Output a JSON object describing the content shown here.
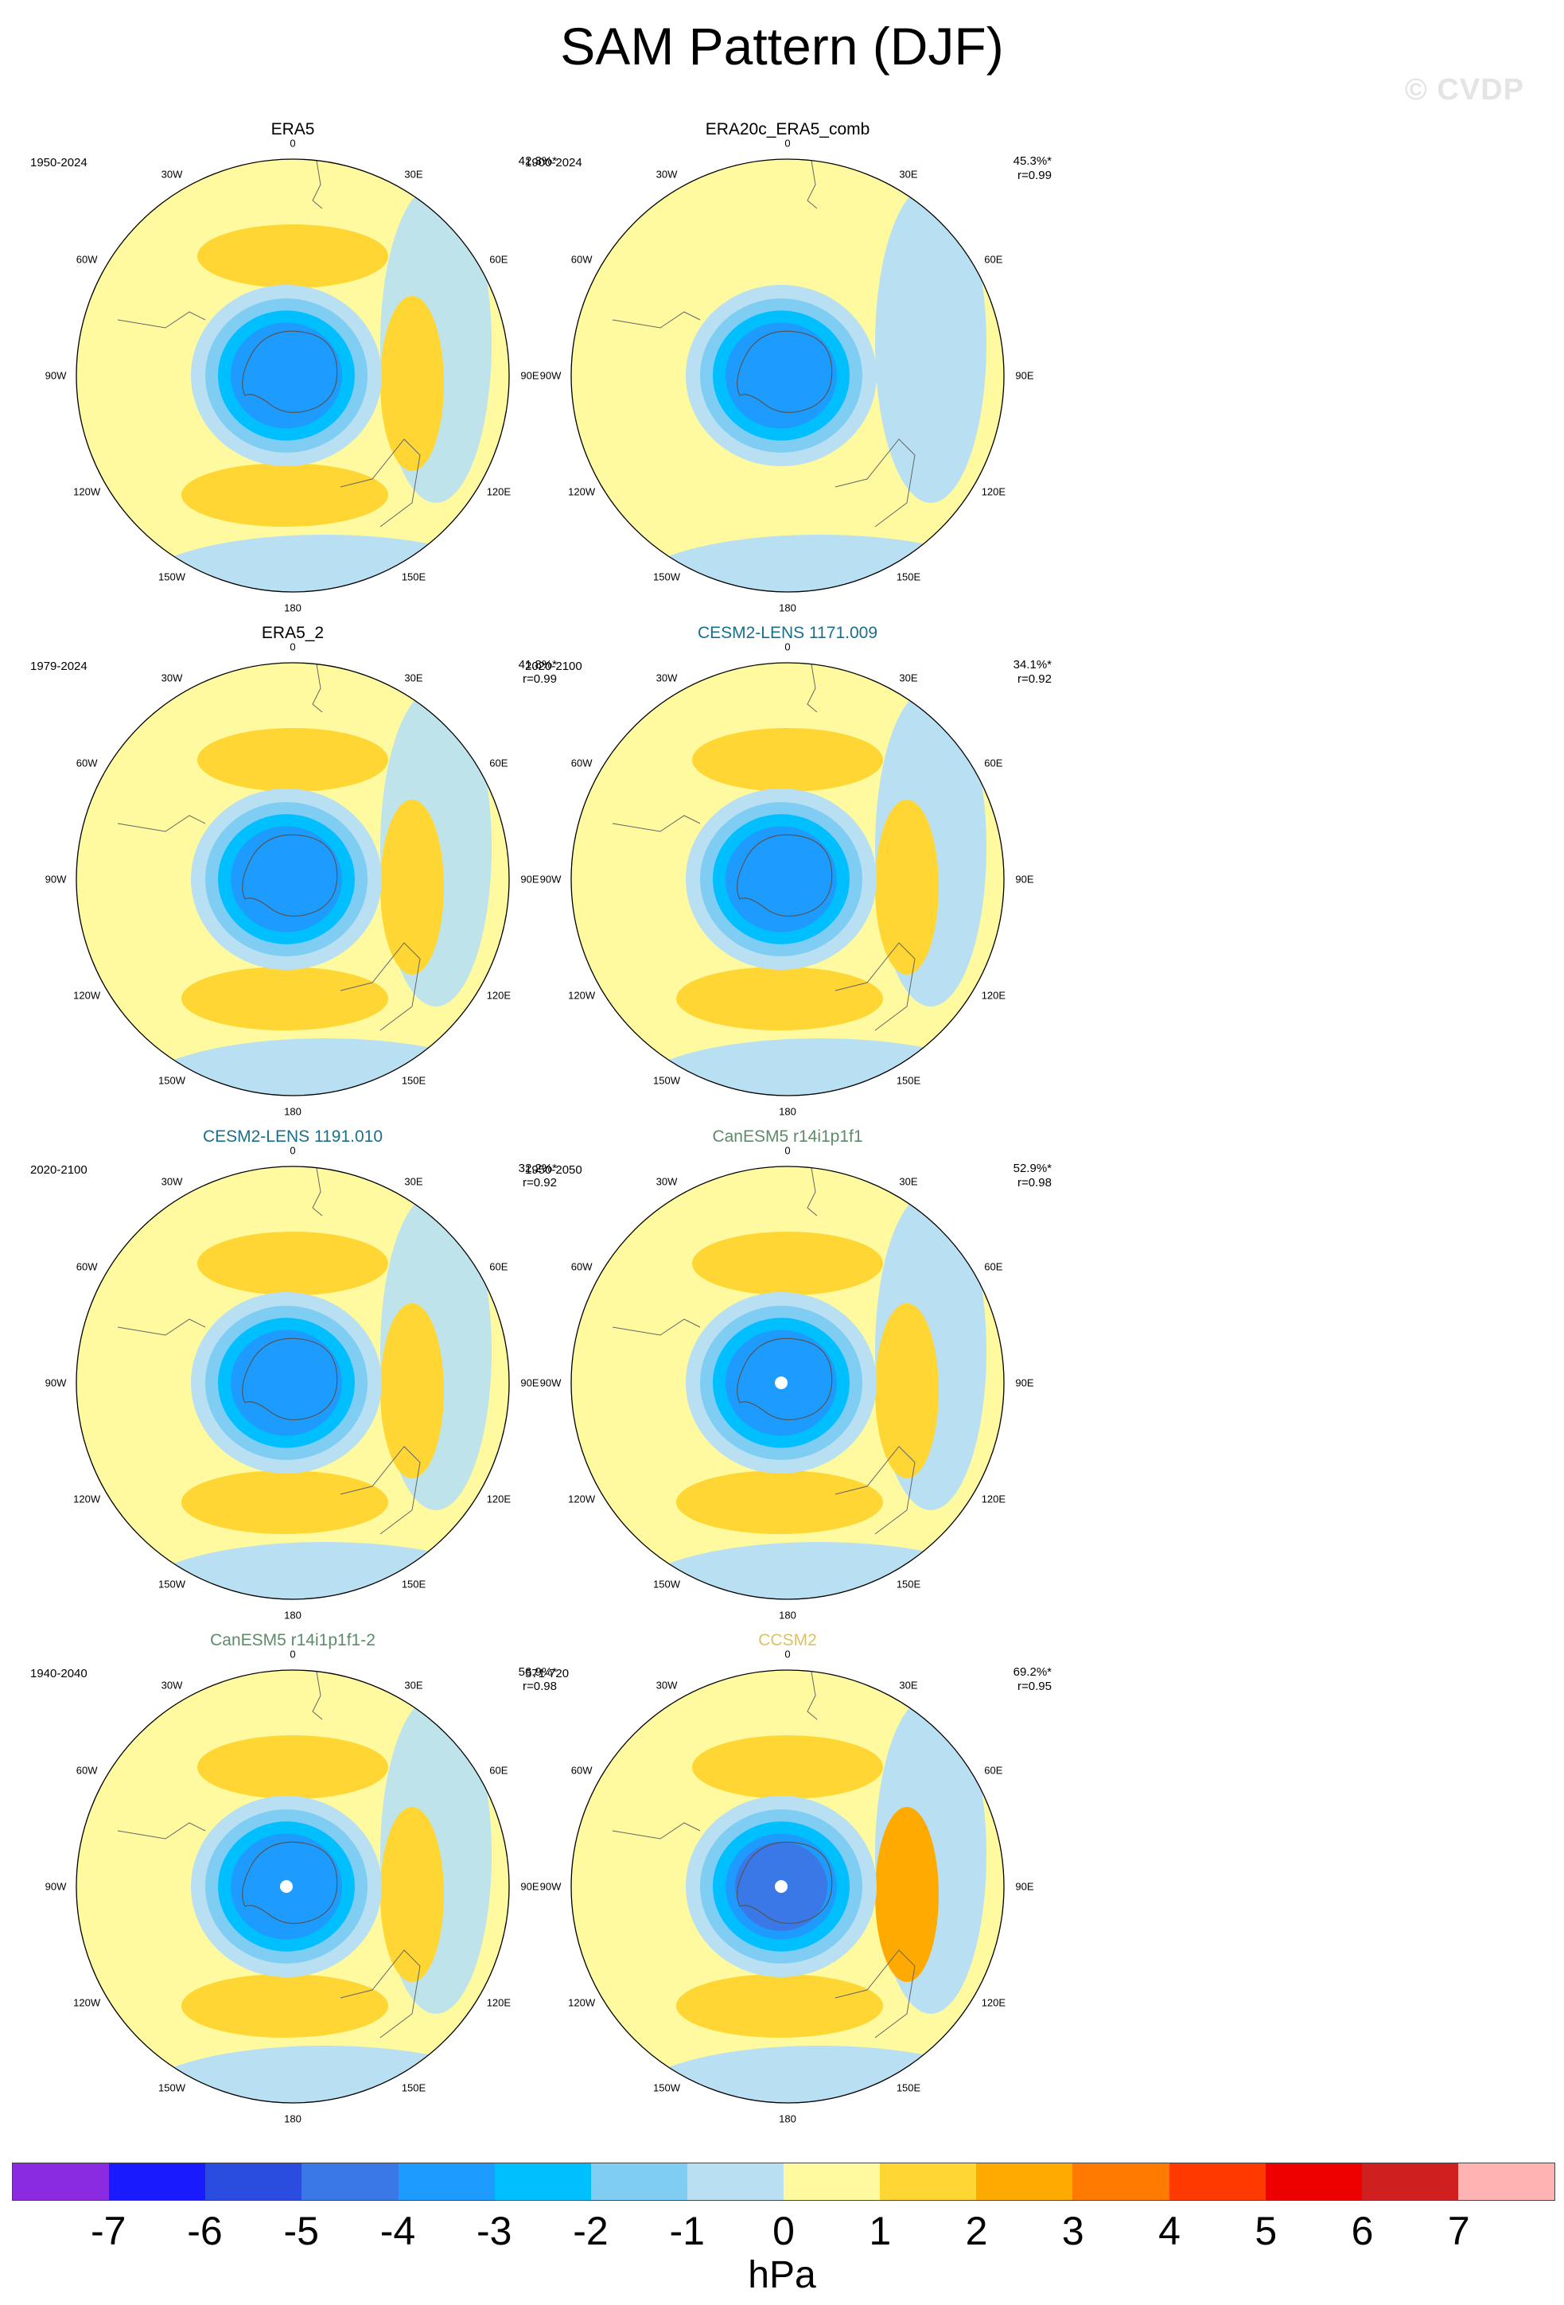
{
  "title": "SAM Pattern (DJF)",
  "watermark": "© CVDP",
  "longitude_labels": [
    "0",
    "30E",
    "60E",
    "90E",
    "120E",
    "150E",
    "180",
    "150W",
    "120W",
    "90W",
    "60W",
    "30W"
  ],
  "panels": [
    {
      "title": "ERA5",
      "title_color": "#000000",
      "period": "1950-2024",
      "pct": "42.3%*",
      "r": "",
      "lobes": [
        "weak",
        "weak",
        "weak"
      ]
    },
    {
      "title": "ERA20c_ERA5_comb",
      "title_color": "#000000",
      "period": "1900-2024",
      "pct": "45.3%*",
      "r": "r=0.99",
      "lobes": [
        "none",
        "none",
        "none"
      ]
    },
    {
      "title": "ERA5_2",
      "title_color": "#000000",
      "period": "1979-2024",
      "pct": "41.8%*",
      "r": "r=0.99",
      "lobes": [
        "weak",
        "weak",
        "weak"
      ]
    },
    {
      "title": "CESM2-LENS 1171.009",
      "title_color": "#1a6f8a",
      "period": "2020-2100",
      "pct": "34.1%*",
      "r": "r=0.92",
      "lobes": [
        "mid",
        "mid",
        "mid"
      ]
    },
    {
      "title": "CESM2-LENS 1191.010",
      "title_color": "#1a6f8a",
      "period": "2020-2100",
      "pct": "32.2%*",
      "r": "r=0.92",
      "lobes": [
        "mid",
        "mid",
        "mid"
      ]
    },
    {
      "title": "CanESM5 r14i1p1f1",
      "title_color": "#5f8a6a",
      "period": "1950-2050",
      "pct": "52.9%*",
      "r": "r=0.98",
      "lobes": [
        "mid",
        "mid",
        "mid"
      ]
    },
    {
      "title": "CanESM5 r14i1p1f1-2",
      "title_color": "#5f8a6a",
      "period": "1940-2040",
      "pct": "56.9%*",
      "r": "r=0.98",
      "lobes": [
        "mid",
        "mid",
        "mid"
      ]
    },
    {
      "title": "CCSM2",
      "title_color": "#d9c26a",
      "period": "571-720",
      "pct": "69.2%*",
      "r": "r=0.95",
      "lobes": [
        "strong",
        "strong",
        "strong"
      ]
    }
  ],
  "colorbar": {
    "colors": [
      "#8a2be2",
      "#1a1aff",
      "#2a4de0",
      "#3a78e8",
      "#1e9bff",
      "#00bfff",
      "#7fcdf3",
      "#b8e0f2",
      "#fffaa0",
      "#ffd633",
      "#ffaa00",
      "#ff7a00",
      "#ff3a00",
      "#ee0000",
      "#d01f1f",
      "#ffb3b3"
    ],
    "labels": [
      "-7",
      "-6",
      "-5",
      "-4",
      "-3",
      "-2",
      "-1",
      "0",
      "1",
      "2",
      "3",
      "4",
      "5",
      "6",
      "7"
    ],
    "units": "hPa"
  }
}
